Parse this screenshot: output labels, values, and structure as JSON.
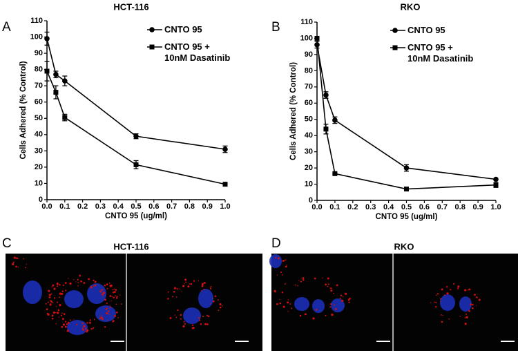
{
  "panel_labels": [
    "A",
    "B",
    "C",
    "D"
  ],
  "chart_data": [
    {
      "type": "line",
      "title": "HCT-116",
      "x_label": "CNTO 95 (ug/ml)",
      "y_label": "Cells Adhered (% Control)",
      "x": [
        0,
        0.05,
        0.1,
        0.5,
        1.0
      ],
      "series": [
        {
          "name": "CNTO 95",
          "color": "#000000",
          "marker": "circle",
          "values": [
            99,
            77,
            73,
            39,
            31
          ],
          "errors": [
            4,
            2,
            3,
            1.5,
            2
          ]
        },
        {
          "name": "CNTO 95 +\n10nM Dasatinib",
          "color": "#000000",
          "marker": "square",
          "values": [
            79,
            66,
            50.5,
            21.5,
            9.5
          ],
          "errors": [
            6,
            4,
            2,
            2.5,
            0.5
          ]
        }
      ],
      "xlim": [
        0,
        1.0
      ],
      "ylim": [
        0,
        110
      ],
      "xticks": [
        {
          "value": 0,
          "label": "0.0"
        },
        0.1,
        0.2,
        0.3,
        0.4,
        0.5,
        0.6,
        0.7,
        0.8,
        0.9,
        {
          "value": 1.0,
          "label": "1.0"
        }
      ],
      "yticks": [
        0,
        10,
        20,
        30,
        40,
        50,
        60,
        70,
        80,
        90,
        100,
        110
      ]
    },
    {
      "type": "line",
      "title": "RKO",
      "x_label": "CNTO 95 (ug/ml)",
      "y_label": "Cells Adhered (% Control)",
      "x": [
        0,
        0.05,
        0.1,
        0.5,
        1.0
      ],
      "series": [
        {
          "name": "CNTO 95",
          "color": "#000000",
          "marker": "circle",
          "values": [
            96,
            65,
            49.5,
            20,
            13
          ],
          "errors": [
            2,
            2,
            2,
            2,
            0.5
          ]
        },
        {
          "name": "CNTO 95 +\n10nM Dasatinib",
          "color": "#000000",
          "marker": "square",
          "values": [
            100,
            44,
            16.5,
            7,
            9.5
          ],
          "errors": [
            1,
            3,
            0.5,
            0.5,
            1.5
          ]
        }
      ],
      "xlim": [
        0,
        1.0
      ],
      "ylim": [
        0,
        110
      ],
      "xticks": [
        {
          "value": 0,
          "label": "0.0"
        },
        0.1,
        0.2,
        0.3,
        0.4,
        0.5,
        0.6,
        0.7,
        0.8,
        0.9,
        {
          "value": 1.0,
          "label": "1.0"
        }
      ],
      "yticks": [
        0,
        10,
        20,
        30,
        40,
        50,
        60,
        70,
        80,
        90,
        100,
        110
      ]
    }
  ],
  "image_panels": [
    {
      "title": "HCT-116"
    },
    {
      "title": "RKO"
    }
  ]
}
